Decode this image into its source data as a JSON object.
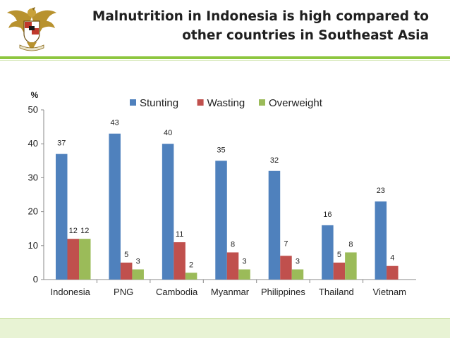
{
  "slide": {
    "title_line1": "Malnutrition in Indonesia is high compared to",
    "title_line2": "other countries in Southeast Asia"
  },
  "colors": {
    "accent_green": "#8dc63f",
    "footer_bg": "#e8f3d4",
    "stunting": "#4f81bd",
    "wasting": "#c0504d",
    "overweight": "#9bbb59"
  },
  "logo": {
    "name": "garuda-emblem"
  },
  "chart_data": {
    "type": "bar",
    "ylabel": "%",
    "ylim": [
      0,
      50
    ],
    "yticks": [
      0,
      10,
      20,
      30,
      40,
      50
    ],
    "categories": [
      "Indonesia",
      "PNG",
      "Cambodia",
      "Myanmar",
      "Philippines",
      "Thailand",
      "Vietnam"
    ],
    "legend_position": "top",
    "grid": false,
    "series": [
      {
        "name": "Stunting",
        "color": "#4f81bd",
        "values": [
          37,
          43,
          40,
          35,
          32,
          16,
          23
        ]
      },
      {
        "name": "Wasting",
        "color": "#c0504d",
        "values": [
          12,
          5,
          11,
          8,
          7,
          5,
          4
        ]
      },
      {
        "name": "Overweight",
        "color": "#9bbb59",
        "values": [
          12,
          3,
          2,
          3,
          3,
          8,
          null
        ]
      }
    ]
  }
}
